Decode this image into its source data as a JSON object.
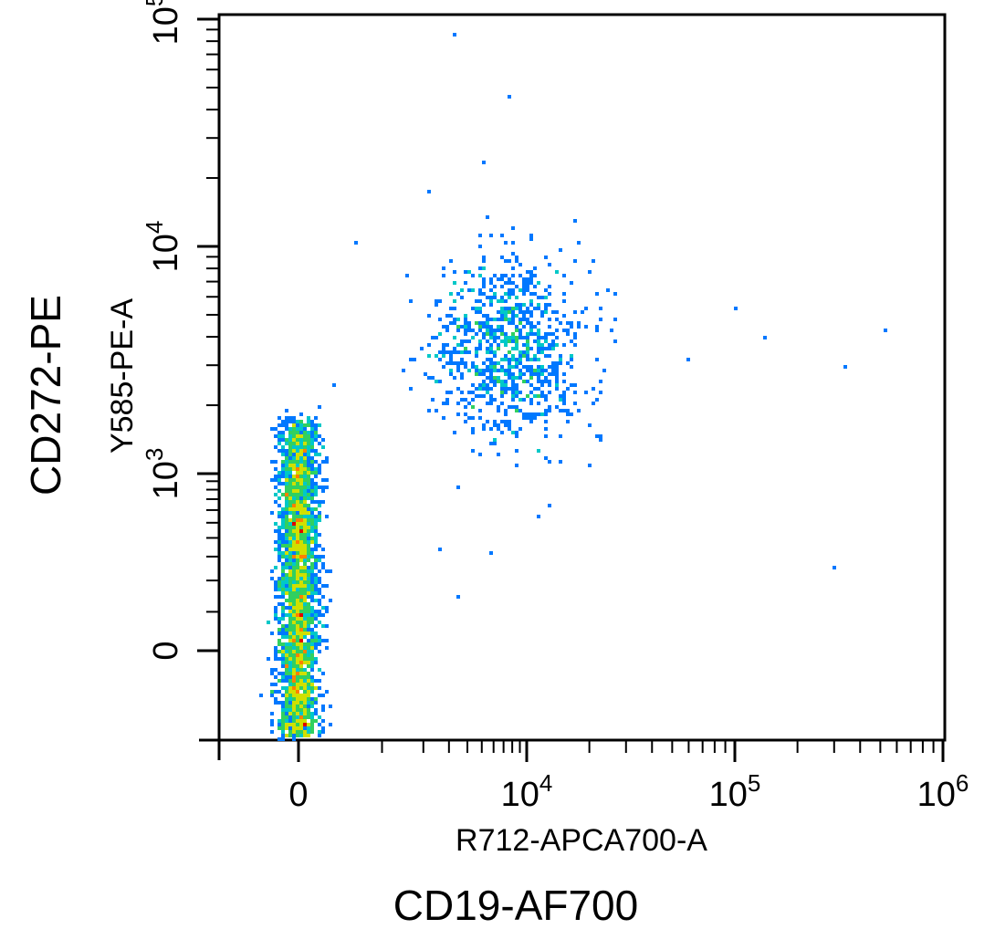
{
  "chart_data": {
    "type": "scatter",
    "subtype": "flow-cytometry-density-plot",
    "title": "",
    "xlabel": "R712-APCA700-A",
    "ylabel": "Y585-PE-A",
    "xmarker": "CD19-AF700",
    "ymarker": "CD272-PE",
    "x_scale": "biexponential",
    "y_scale": "biexponential",
    "xlim": [
      -2000,
      1000000
    ],
    "ylim": [
      -3000,
      100000
    ],
    "x_ticks": [
      {
        "base": "0",
        "exp": ""
      },
      {
        "base": "10",
        "exp": "4"
      },
      {
        "base": "10",
        "exp": "5"
      },
      {
        "base": "10",
        "exp": "6"
      }
    ],
    "y_ticks": [
      {
        "base": "0",
        "exp": ""
      },
      {
        "base": "10",
        "exp": "3"
      },
      {
        "base": "10",
        "exp": "4"
      },
      {
        "base": "10",
        "exp": "5"
      }
    ],
    "density_colors": [
      "#0000ff",
      "#0078ff",
      "#00c8c8",
      "#30d060",
      "#d0e000",
      "#ff8000",
      "#e00000"
    ],
    "populations": [
      {
        "name": "",
        "x_center": 0,
        "x_spread": 250,
        "y_center": 450,
        "y_range": [
          -3000,
          1700
        ],
        "events": 3000
      },
      {
        "name": "",
        "x_center": 7500,
        "x_spread": 3000,
        "y_center": 3500,
        "y_range": [
          1500,
          8000
        ],
        "events": 900
      }
    ],
    "sparse_events": [
      {
        "x": 3200,
        "y": 85000
      },
      {
        "x": 7800,
        "y": 46000
      },
      {
        "x": 5200,
        "y": 23000
      },
      {
        "x": 2200,
        "y": 17500
      },
      {
        "x": 7200,
        "y": 10500
      },
      {
        "x": 18000,
        "y": 10500
      },
      {
        "x": 600,
        "y": 10200
      },
      {
        "x": 1500,
        "y": 7500
      },
      {
        "x": 15000,
        "y": 7500
      },
      {
        "x": 100000,
        "y": 5300
      },
      {
        "x": 140000,
        "y": 3900
      },
      {
        "x": 520000,
        "y": 4200
      },
      {
        "x": 340000,
        "y": 3000
      },
      {
        "x": 60000,
        "y": 3200
      },
      {
        "x": 20000,
        "y": 1100
      },
      {
        "x": 13000,
        "y": 650
      },
      {
        "x": 3500,
        "y": 150
      },
      {
        "x": 300000,
        "y": 250
      },
      {
        "x": 5800,
        "y": 320
      },
      {
        "x": 2600,
        "y": 330
      }
    ]
  }
}
